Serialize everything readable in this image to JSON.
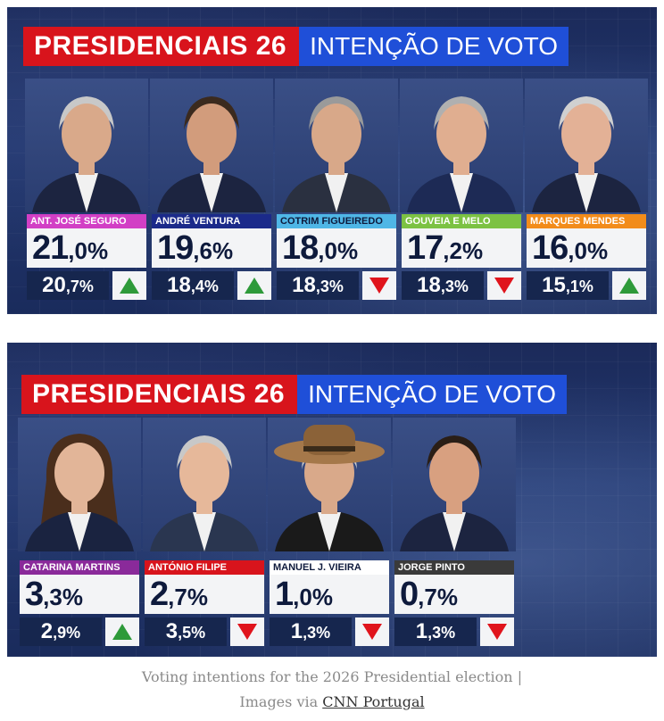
{
  "panel1": {
    "title_main": "PRESIDENCIAIS 26",
    "title_sub": "INTENÇÃO DE VOTO",
    "candidates": [
      {
        "name": "ANT. JOSÉ SEGURO",
        "color": "#d23fc5",
        "text": "#ffffff",
        "int": "21",
        "dec": ",0%",
        "prev_int": "20",
        "prev_dec": ",7%",
        "trend": "up"
      },
      {
        "name": "ANDRÉ VENTURA",
        "color": "#1b2a8a",
        "text": "#ffffff",
        "int": "19",
        "dec": ",6%",
        "prev_int": "18",
        "prev_dec": ",4%",
        "trend": "up"
      },
      {
        "name": "COTRIM FIGUEIREDO",
        "color": "#4fb6e6",
        "text": "#0e1a3c",
        "int": "18",
        "dec": ",0%",
        "prev_int": "18",
        "prev_dec": ",3%",
        "trend": "down"
      },
      {
        "name": "GOUVEIA E MELO",
        "color": "#7cc243",
        "text": "#ffffff",
        "int": "17",
        "dec": ",2%",
        "prev_int": "18",
        "prev_dec": ",3%",
        "trend": "down"
      },
      {
        "name": "MARQUES MENDES",
        "color": "#f28c1a",
        "text": "#ffffff",
        "int": "16",
        "dec": ",0%",
        "prev_int": "15",
        "prev_dec": ",1%",
        "trend": "up"
      }
    ]
  },
  "panel2": {
    "title_main": "PRESIDENCIAIS 26",
    "title_sub": "INTENÇÃO DE VOTO",
    "candidates": [
      {
        "name": "CATARINA MARTINS",
        "color": "#8a2a9a",
        "text": "#ffffff",
        "int": "3",
        "dec": ",3%",
        "prev_int": "2",
        "prev_dec": ",9%",
        "trend": "up"
      },
      {
        "name": "ANTÓNIO FILIPE",
        "color": "#d8141c",
        "text": "#ffffff",
        "int": "2",
        "dec": ",7%",
        "prev_int": "3",
        "prev_dec": ",5%",
        "trend": "down"
      },
      {
        "name": "MANUEL J. VIEIRA",
        "color": "#ffffff",
        "text": "#0e1a3c",
        "int": "1",
        "dec": ",0%",
        "prev_int": "1",
        "prev_dec": ",3%",
        "trend": "down"
      },
      {
        "name": "JORGE PINTO",
        "color": "#3a3a3a",
        "text": "#ffffff",
        "int": "0",
        "dec": ",7%",
        "prev_int": "1",
        "prev_dec": ",3%",
        "trend": "down"
      }
    ]
  },
  "caption": {
    "line1": "Voting intentions for the 2026 Presidential election |",
    "line2_prefix": "Images via ",
    "link": "CNN Portugal"
  }
}
